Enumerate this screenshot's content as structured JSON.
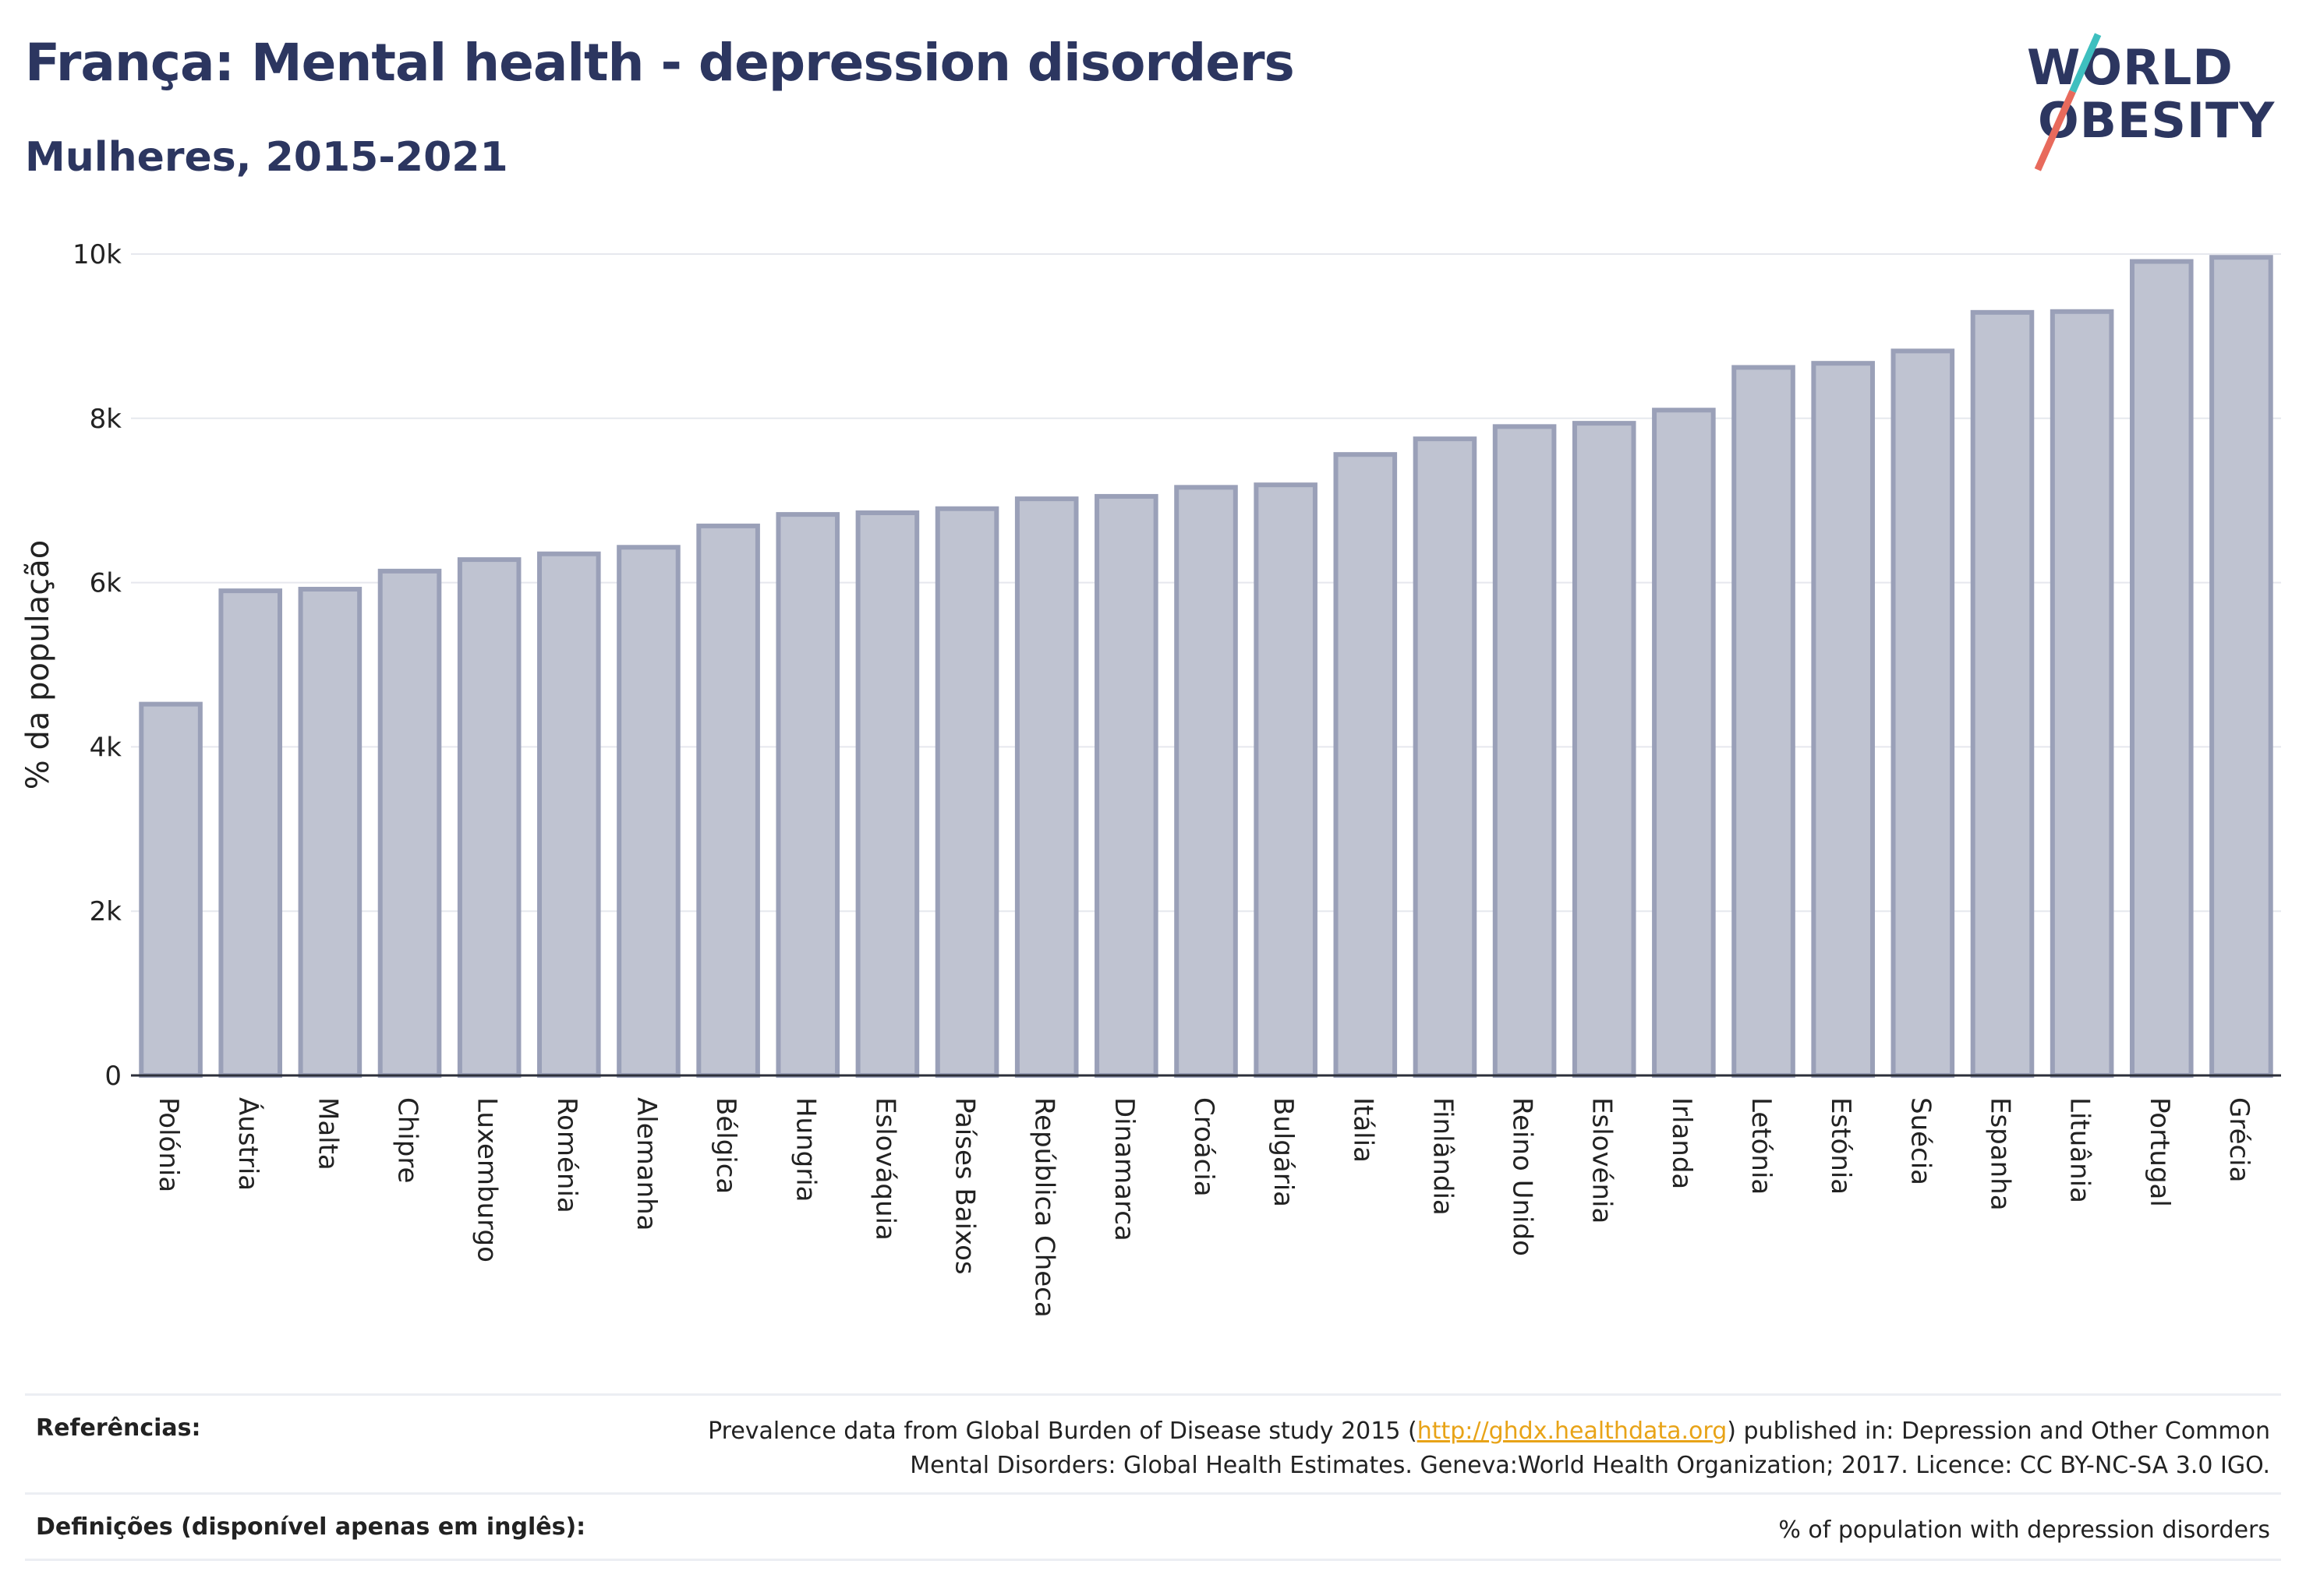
{
  "header": {
    "title": "França: Mental health - depression disorders",
    "subtitle": "Mulheres, 2015-2021"
  },
  "logo": {
    "line1": "WORLD",
    "line2": "OBESITY"
  },
  "colors": {
    "bar_fill": "#bfc3d1",
    "bar_stroke": "#9aa0b8",
    "title": "#2c3660",
    "grid": "#e6e8ee",
    "link": "#e8a317"
  },
  "chart_data": {
    "type": "bar",
    "title": "França: Mental health - depression disorders",
    "subtitle": "Mulheres, 2015-2021",
    "xlabel": "",
    "ylabel": "% da população",
    "ylim": [
      0,
      10000
    ],
    "yticks": [
      0,
      2000,
      4000,
      6000,
      8000,
      10000
    ],
    "ytick_labels": [
      "0",
      "2k",
      "4k",
      "6k",
      "8k",
      "10k"
    ],
    "grid": true,
    "categories": [
      "Polónia",
      "Áustria",
      "Malta",
      "Chipre",
      "Luxemburgo",
      "Roménia",
      "Alemanha",
      "Bélgica",
      "Hungria",
      "Eslováquia",
      "Países Baixos",
      "República Checa",
      "Dinamarca",
      "Croácia",
      "Bulgária",
      "Itália",
      "Finlândia",
      "Reino Unido",
      "Eslovénia",
      "Irlanda",
      "Letónia",
      "Estónia",
      "Suécia",
      "Espanha",
      "Lituânia",
      "Portugal",
      "Grécia"
    ],
    "values": [
      4520,
      5900,
      5920,
      6140,
      6280,
      6350,
      6430,
      6690,
      6830,
      6850,
      6900,
      7020,
      7050,
      7160,
      7190,
      7560,
      7750,
      7900,
      7940,
      8100,
      8620,
      8670,
      8820,
      9290,
      9300,
      9910,
      9960
    ]
  },
  "footer": {
    "references_label": "Referências:",
    "references_text_before": "Prevalence data from Global Burden of Disease study 2015 (",
    "references_link": "http://ghdx.healthdata.org",
    "references_text_after": ") published in: Depression and Other Common",
    "references_text_line2": "Mental Disorders: Global Health Estimates. Geneva:World Health Organization; 2017. Licence: CC BY-NC-SA 3.0 IGO.",
    "definitions_label": "Definições (disponível apenas em inglês):",
    "definitions_text": "% of population with depression disorders"
  }
}
